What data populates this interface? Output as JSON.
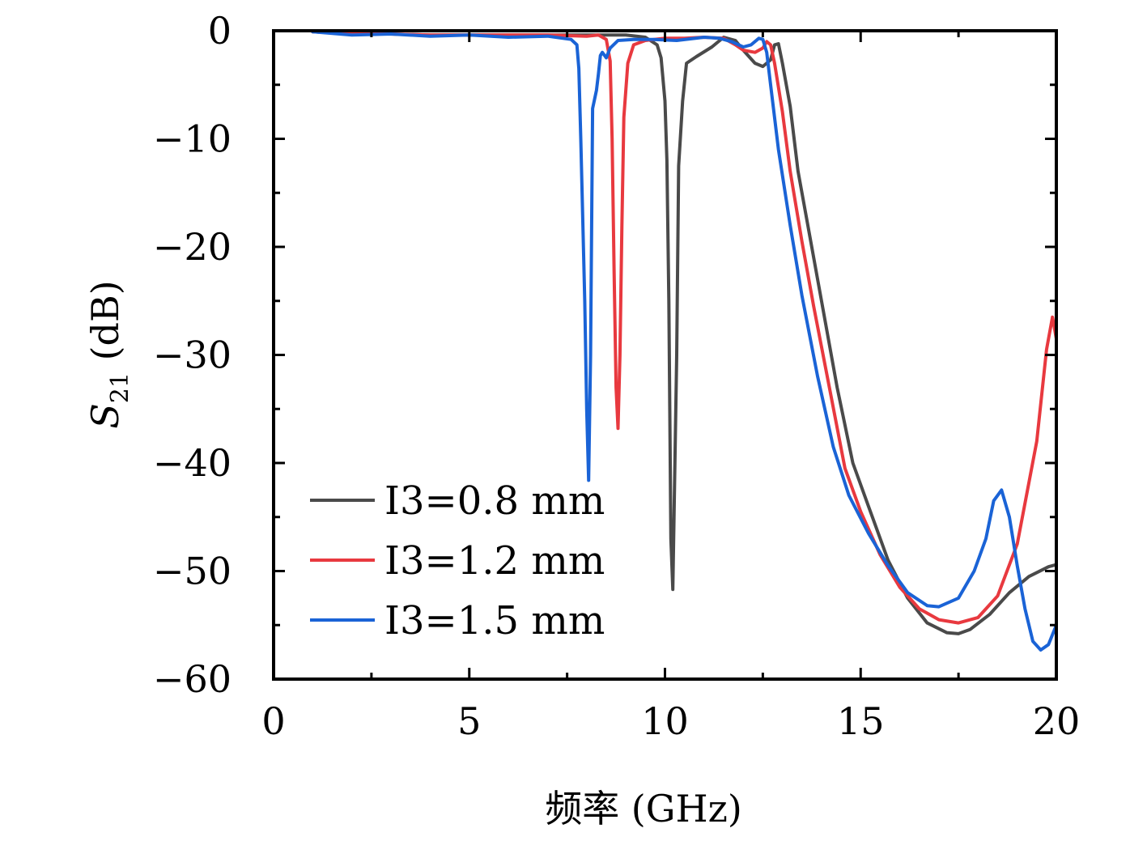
{
  "chart_data": {
    "type": "line",
    "xlabel": "频率 (GHz)",
    "ylabel_main": "S",
    "ylabel_sub": "21",
    "ylabel_unit": "(dB)",
    "xlim": [
      0,
      20
    ],
    "ylim": [
      -60,
      0
    ],
    "xticks": [
      0,
      5,
      10,
      15,
      20
    ],
    "yticks": [
      0,
      -10,
      -20,
      -30,
      -40,
      -50,
      -60
    ],
    "x_tick_labels": [
      "0",
      "5",
      "10",
      "15",
      "20"
    ],
    "y_tick_labels": [
      "0",
      "−10",
      "−20",
      "−30",
      "−40",
      "−50",
      "−60"
    ],
    "grid": false,
    "legend_position": "bottom-left",
    "series": [
      {
        "name": "I3=0.8 mm",
        "color": "#4a4a4a",
        "points": [
          [
            1.0,
            -0.1
          ],
          [
            2.0,
            -0.3
          ],
          [
            3.0,
            -0.3
          ],
          [
            4.0,
            -0.4
          ],
          [
            5.0,
            -0.4
          ],
          [
            6.0,
            -0.4
          ],
          [
            7.0,
            -0.4
          ],
          [
            8.0,
            -0.4
          ],
          [
            9.0,
            -0.4
          ],
          [
            9.5,
            -0.6
          ],
          [
            9.8,
            -1.3
          ],
          [
            9.9,
            -2.5
          ],
          [
            10.0,
            -6.5
          ],
          [
            10.05,
            -12
          ],
          [
            10.1,
            -25
          ],
          [
            10.15,
            -47
          ],
          [
            10.2,
            -51.7
          ],
          [
            10.3,
            -30
          ],
          [
            10.35,
            -12.5
          ],
          [
            10.45,
            -6.5
          ],
          [
            10.55,
            -3.0
          ],
          [
            10.8,
            -2.4
          ],
          [
            11.2,
            -1.5
          ],
          [
            11.5,
            -0.6
          ],
          [
            11.8,
            -0.9
          ],
          [
            12.0,
            -1.8
          ],
          [
            12.3,
            -3.0
          ],
          [
            12.5,
            -3.3
          ],
          [
            12.7,
            -2.7
          ],
          [
            12.8,
            -1.3
          ],
          [
            12.9,
            -1.2
          ],
          [
            13.0,
            -3.0
          ],
          [
            13.2,
            -7.0
          ],
          [
            13.4,
            -13.0
          ],
          [
            13.7,
            -19.0
          ],
          [
            14.0,
            -25.0
          ],
          [
            14.4,
            -33.0
          ],
          [
            14.8,
            -40.0
          ],
          [
            15.2,
            -44.0
          ],
          [
            15.7,
            -49.0
          ],
          [
            16.2,
            -52.5
          ],
          [
            16.7,
            -54.8
          ],
          [
            17.2,
            -55.7
          ],
          [
            17.5,
            -55.8
          ],
          [
            17.8,
            -55.4
          ],
          [
            18.3,
            -54.0
          ],
          [
            18.8,
            -52.0
          ],
          [
            19.3,
            -50.5
          ],
          [
            19.8,
            -49.6
          ],
          [
            20.0,
            -49.4
          ]
        ]
      },
      {
        "name": "I3=1.2 mm",
        "color": "#e8393f",
        "points": [
          [
            1.0,
            -0.1
          ],
          [
            2.0,
            -0.3
          ],
          [
            3.0,
            -0.3
          ],
          [
            4.0,
            -0.4
          ],
          [
            5.0,
            -0.4
          ],
          [
            6.0,
            -0.4
          ],
          [
            7.0,
            -0.4
          ],
          [
            8.0,
            -0.5
          ],
          [
            8.3,
            -0.4
          ],
          [
            8.5,
            -0.8
          ],
          [
            8.6,
            -2.8
          ],
          [
            8.65,
            -10
          ],
          [
            8.7,
            -22
          ],
          [
            8.75,
            -33
          ],
          [
            8.8,
            -36.8
          ],
          [
            8.85,
            -30
          ],
          [
            8.9,
            -18
          ],
          [
            8.95,
            -8.0
          ],
          [
            9.05,
            -3.0
          ],
          [
            9.2,
            -1.3
          ],
          [
            9.5,
            -0.9
          ],
          [
            10.0,
            -0.7
          ],
          [
            10.5,
            -0.7
          ],
          [
            11.0,
            -0.6
          ],
          [
            11.5,
            -0.7
          ],
          [
            11.8,
            -1.3
          ],
          [
            12.0,
            -1.8
          ],
          [
            12.3,
            -2.0
          ],
          [
            12.5,
            -1.6
          ],
          [
            12.6,
            -1.0
          ],
          [
            12.7,
            -1.3
          ],
          [
            12.8,
            -3.0
          ],
          [
            13.0,
            -7.5
          ],
          [
            13.2,
            -13.0
          ],
          [
            13.5,
            -19.5
          ],
          [
            13.8,
            -25.5
          ],
          [
            14.2,
            -33.0
          ],
          [
            14.6,
            -40.5
          ],
          [
            15.0,
            -44.5
          ],
          [
            15.5,
            -48.5
          ],
          [
            16.0,
            -51.5
          ],
          [
            16.5,
            -53.5
          ],
          [
            17.0,
            -54.5
          ],
          [
            17.5,
            -54.8
          ],
          [
            18.0,
            -54.3
          ],
          [
            18.5,
            -52.3
          ],
          [
            19.0,
            -47.5
          ],
          [
            19.5,
            -38.0
          ],
          [
            19.75,
            -29.5
          ],
          [
            19.9,
            -26.5
          ],
          [
            20.0,
            -28.5
          ]
        ]
      },
      {
        "name": "I3=1.5 mm",
        "color": "#1a63d6",
        "points": [
          [
            1.0,
            -0.1
          ],
          [
            2.0,
            -0.4
          ],
          [
            3.0,
            -0.3
          ],
          [
            4.0,
            -0.5
          ],
          [
            5.0,
            -0.4
          ],
          [
            6.0,
            -0.6
          ],
          [
            7.0,
            -0.5
          ],
          [
            7.6,
            -0.8
          ],
          [
            7.75,
            -1.3
          ],
          [
            7.8,
            -3.5
          ],
          [
            7.85,
            -10
          ],
          [
            7.95,
            -25
          ],
          [
            8.0,
            -35
          ],
          [
            8.05,
            -41.6
          ],
          [
            8.1,
            -30
          ],
          [
            8.15,
            -7.2
          ],
          [
            8.25,
            -5.5
          ],
          [
            8.3,
            -4.0
          ],
          [
            8.35,
            -2.3
          ],
          [
            8.4,
            -2.0
          ],
          [
            8.5,
            -2.5
          ],
          [
            8.6,
            -1.6
          ],
          [
            8.8,
            -0.9
          ],
          [
            9.2,
            -0.8
          ],
          [
            9.7,
            -0.8
          ],
          [
            10.3,
            -0.9
          ],
          [
            11.0,
            -0.6
          ],
          [
            11.4,
            -0.7
          ],
          [
            11.7,
            -1.0
          ],
          [
            12.0,
            -1.5
          ],
          [
            12.2,
            -1.3
          ],
          [
            12.4,
            -0.7
          ],
          [
            12.5,
            -0.8
          ],
          [
            12.6,
            -2.0
          ],
          [
            12.7,
            -5.0
          ],
          [
            12.9,
            -11.0
          ],
          [
            13.2,
            -18.0
          ],
          [
            13.5,
            -24.5
          ],
          [
            13.9,
            -32.0
          ],
          [
            14.3,
            -38.5
          ],
          [
            14.7,
            -43.0
          ],
          [
            15.2,
            -46.5
          ],
          [
            15.7,
            -49.5
          ],
          [
            16.2,
            -52.0
          ],
          [
            16.7,
            -53.2
          ],
          [
            17.0,
            -53.3
          ],
          [
            17.5,
            -52.5
          ],
          [
            17.9,
            -50.0
          ],
          [
            18.2,
            -47.0
          ],
          [
            18.4,
            -43.5
          ],
          [
            18.6,
            -42.5
          ],
          [
            18.8,
            -45.0
          ],
          [
            19.0,
            -49.5
          ],
          [
            19.2,
            -53.5
          ],
          [
            19.4,
            -56.5
          ],
          [
            19.6,
            -57.3
          ],
          [
            19.8,
            -56.8
          ],
          [
            20.0,
            -55.0
          ]
        ]
      }
    ]
  }
}
